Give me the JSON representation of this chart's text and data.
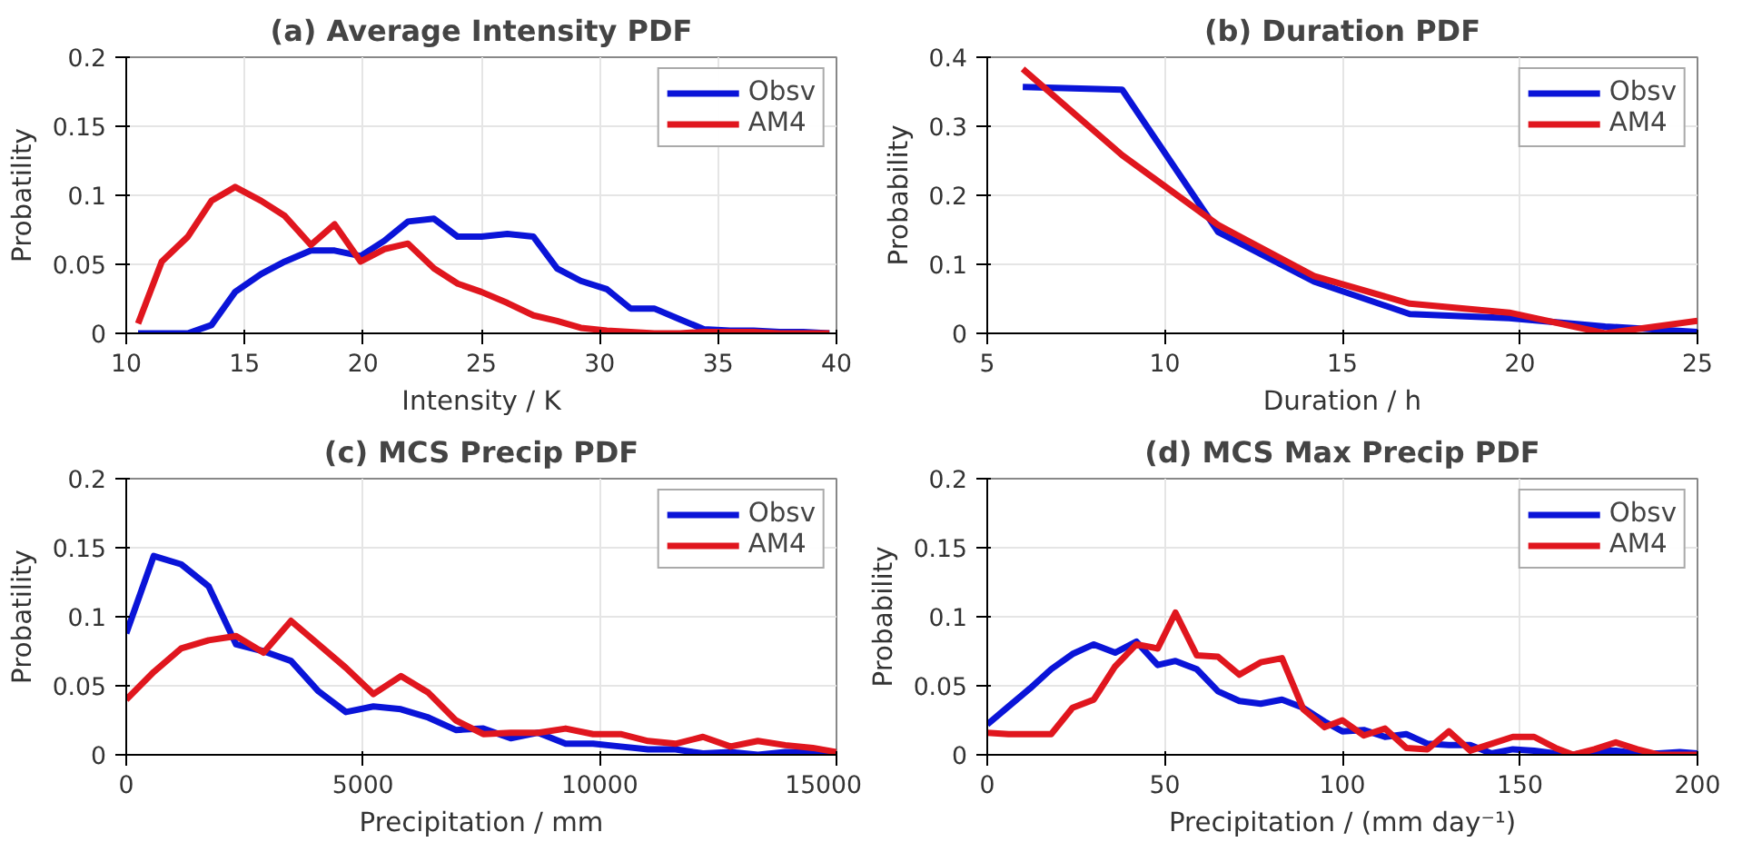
{
  "chart_data": [
    {
      "type": "line",
      "title": "(a) Average Intensity PDF",
      "xlabel": "Intensity / K",
      "ylabel": "Probatility",
      "xlim": [
        10,
        40
      ],
      "xticks": [
        10,
        15,
        20,
        25,
        30,
        35,
        40
      ],
      "ylim": [
        0,
        0.2
      ],
      "yticks": [
        0,
        0.05,
        0.1,
        0.15,
        0.2
      ],
      "grid": true,
      "legend": "top right",
      "x": [
        10.5,
        11.5,
        12.6,
        13.6,
        14.6,
        15.7,
        16.7,
        17.8,
        18.8,
        19.9,
        20.9,
        21.9,
        23,
        24,
        25,
        26.1,
        27.2,
        28.2,
        29.2,
        30.3,
        31.3,
        32.3,
        33.4,
        34.4,
        35.5,
        36.5,
        37.6,
        38.6,
        39.7
      ],
      "series": [
        {
          "name": "Obsv",
          "color": "#0a14d8",
          "values": [
            0,
            0,
            0,
            0.006,
            0.03,
            0.043,
            0.052,
            0.06,
            0.06,
            0.056,
            0.067,
            0.081,
            0.083,
            0.07,
            0.07,
            0.072,
            0.07,
            0.047,
            0.038,
            0.032,
            0.018,
            0.018,
            0.01,
            0.003,
            0.002,
            0.002,
            0.001,
            0.001,
            0
          ]
        },
        {
          "name": "AM4",
          "color": "#e0161e",
          "values": [
            0.007,
            0.052,
            0.07,
            0.096,
            0.106,
            0.096,
            0.085,
            0.064,
            0.079,
            0.052,
            0.061,
            0.065,
            0.047,
            0.036,
            0.03,
            0.022,
            0.013,
            0.009,
            0.004,
            0.002,
            0.001,
            0,
            0,
            0.001,
            0.001,
            0.001,
            0,
            0,
            0
          ]
        }
      ]
    },
    {
      "type": "line",
      "title": "(b) Duration PDF",
      "xlabel": "Duration / h",
      "ylabel": "Probability",
      "xlim": [
        5,
        25
      ],
      "xticks": [
        5,
        10,
        15,
        20,
        25
      ],
      "ylim": [
        0,
        0.4
      ],
      "yticks": [
        0,
        0.1,
        0.2,
        0.3,
        0.4
      ],
      "grid": true,
      "legend": "top right",
      "x": [
        6,
        8.8,
        11.5,
        14.2,
        16.9,
        19.7,
        22.4,
        25
      ],
      "series": [
        {
          "name": "Obsv",
          "color": "#0a14d8",
          "values": [
            0.357,
            0.353,
            0.147,
            0.075,
            0.028,
            0.022,
            0.01,
            0.002
          ]
        },
        {
          "name": "AM4",
          "color": "#e0161e",
          "values": [
            0.383,
            0.258,
            0.157,
            0.083,
            0.043,
            0.03,
            0,
            0.018
          ]
        }
      ]
    },
    {
      "type": "line",
      "title": "(c) MCS Precip PDF",
      "xlabel": "Precipitation / mm",
      "ylabel": "Probatility",
      "xlim": [
        0,
        15000
      ],
      "xticks": [
        0,
        5000,
        10000,
        15000
      ],
      "ylim": [
        0,
        0.2
      ],
      "yticks": [
        0,
        0.05,
        0.1,
        0.15,
        0.2
      ],
      "grid": true,
      "legend": "top right",
      "x": [
        0,
        580,
        1160,
        1740,
        2320,
        2900,
        3480,
        4060,
        4640,
        5220,
        5800,
        6380,
        6960,
        7540,
        8120,
        8700,
        9280,
        9860,
        10440,
        11020,
        11600,
        12180,
        12760,
        13340,
        13920,
        14500,
        15000
      ],
      "series": [
        {
          "name": "Obsv",
          "color": "#0a14d8",
          "values": [
            0.088,
            0.144,
            0.138,
            0.122,
            0.08,
            0.075,
            0.068,
            0.046,
            0.031,
            0.035,
            0.033,
            0.027,
            0.018,
            0.019,
            0.012,
            0.016,
            0.008,
            0.008,
            0.006,
            0.004,
            0.004,
            0.001,
            0.002,
            0,
            0.002,
            0.002,
            0
          ]
        },
        {
          "name": "AM4",
          "color": "#e0161e",
          "values": [
            0.04,
            0.06,
            0.077,
            0.083,
            0.086,
            0.074,
            0.097,
            0.08,
            0.063,
            0.044,
            0.057,
            0.045,
            0.025,
            0.015,
            0.016,
            0.016,
            0.019,
            0.015,
            0.015,
            0.01,
            0.008,
            0.013,
            0.006,
            0.01,
            0.007,
            0.005,
            0.002
          ]
        }
      ]
    },
    {
      "type": "line",
      "title": "(d) MCS Max Precip PDF",
      "xlabel": "Precipitation / (mm day⁻¹)",
      "ylabel": "Probability",
      "xlim": [
        0,
        200
      ],
      "xticks": [
        0,
        50,
        100,
        150,
        200
      ],
      "ylim": [
        0,
        0.2
      ],
      "yticks": [
        0,
        0.05,
        0.1,
        0.15,
        0.2
      ],
      "grid": true,
      "legend": "top right",
      "x": [
        0,
        6,
        12,
        18,
        24,
        30,
        36,
        42,
        48,
        53,
        59,
        65,
        71,
        77,
        83,
        89,
        95,
        100,
        106,
        112,
        118,
        124,
        130,
        136,
        142,
        148,
        154,
        160,
        165,
        171,
        177,
        183,
        189,
        195,
        200
      ],
      "series": [
        {
          "name": "Obsv",
          "color": "#0a14d8",
          "values": [
            0.022,
            0.035,
            0.048,
            0.062,
            0.073,
            0.08,
            0.074,
            0.082,
            0.065,
            0.068,
            0.062,
            0.046,
            0.039,
            0.037,
            0.04,
            0.034,
            0.024,
            0.017,
            0.018,
            0.013,
            0.015,
            0.008,
            0.007,
            0.007,
            0.001,
            0.004,
            0.003,
            0.001,
            0,
            0.003,
            0.003,
            0.001,
            0.001,
            0.002,
            0.001
          ]
        },
        {
          "name": "AM4",
          "color": "#e0161e",
          "values": [
            0.016,
            0.015,
            0.015,
            0.015,
            0.034,
            0.04,
            0.064,
            0.08,
            0.077,
            0.103,
            0.072,
            0.071,
            0.058,
            0.067,
            0.07,
            0.033,
            0.02,
            0.025,
            0.014,
            0.019,
            0.005,
            0.004,
            0.017,
            0.003,
            0.008,
            0.013,
            0.013,
            0.005,
            0,
            0.004,
            0.009,
            0.004,
            0,
            0,
            0
          ]
        }
      ]
    }
  ]
}
